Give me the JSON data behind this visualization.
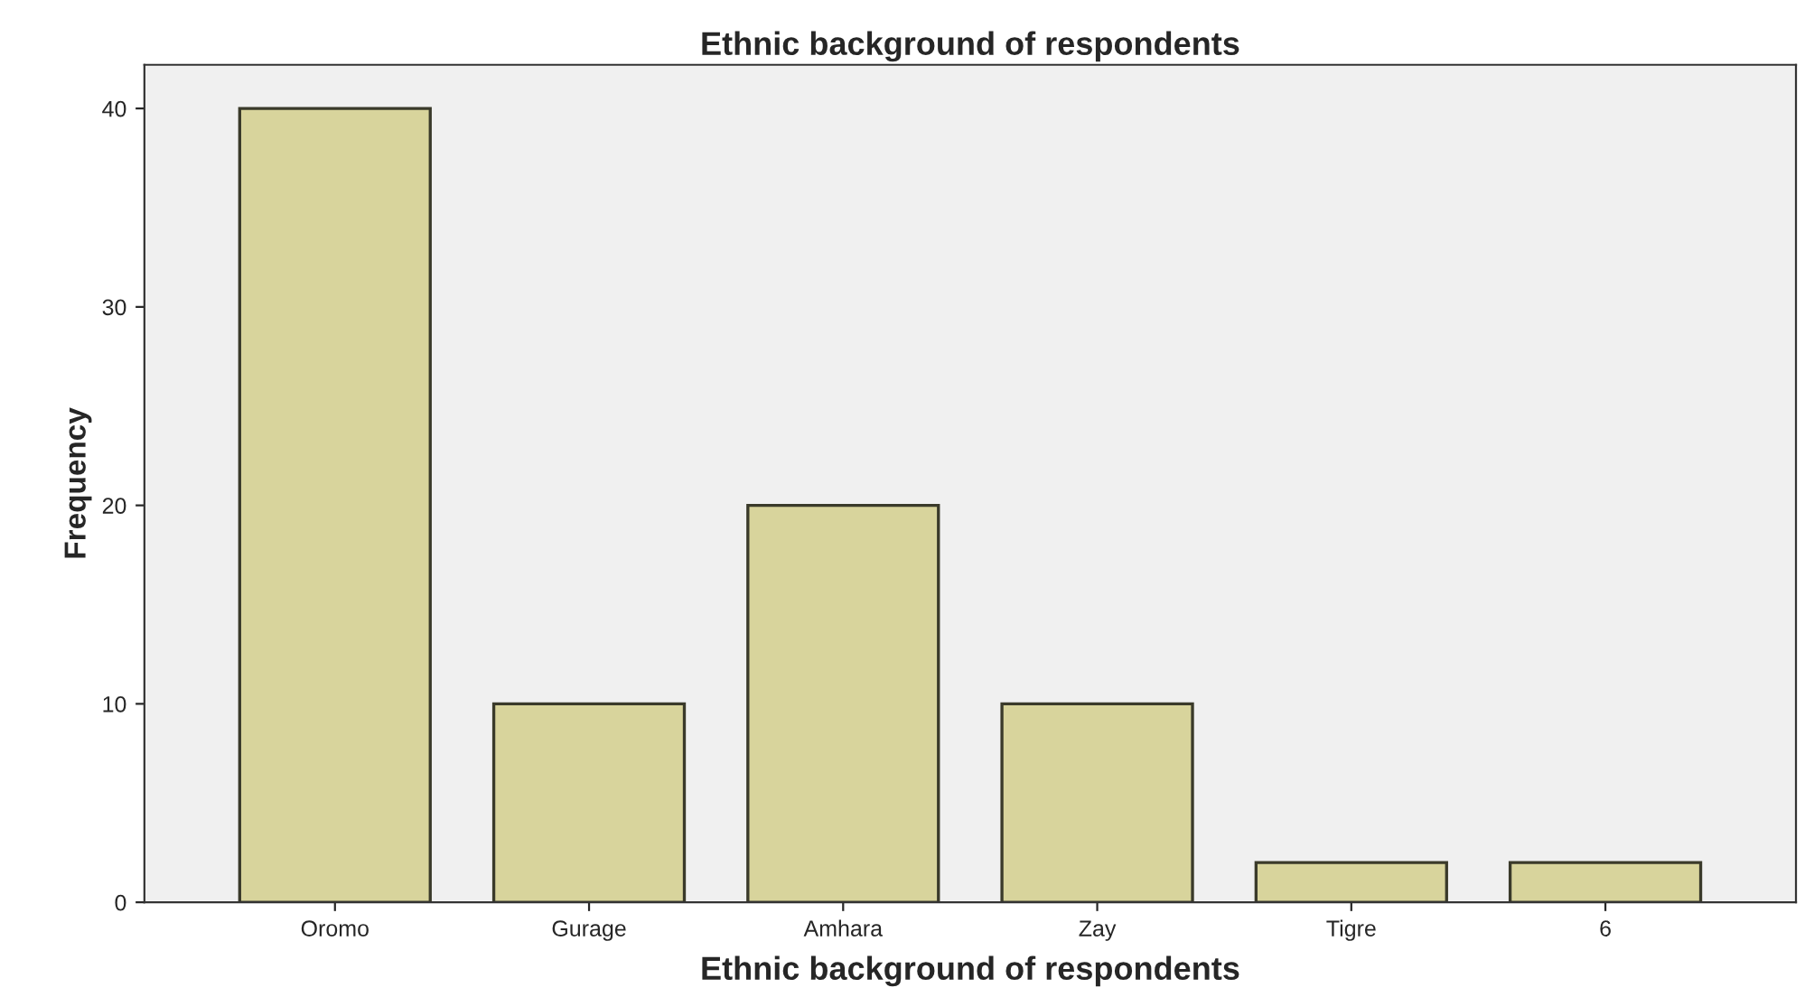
{
  "chart_data": {
    "type": "bar",
    "title": "Ethnic background of respondents",
    "xlabel": "Ethnic background of respondents",
    "ylabel": "Frequency",
    "categories": [
      "Oromo",
      "Gurage",
      "Amhara",
      "Zay",
      "Tigre",
      "6"
    ],
    "values": [
      40,
      10,
      20,
      10,
      2,
      2
    ],
    "color": "#d8d49c",
    "ylim": [
      0,
      42.2
    ],
    "yticks": [
      0,
      10,
      20,
      30,
      40
    ],
    "grid": false,
    "legend": false
  }
}
